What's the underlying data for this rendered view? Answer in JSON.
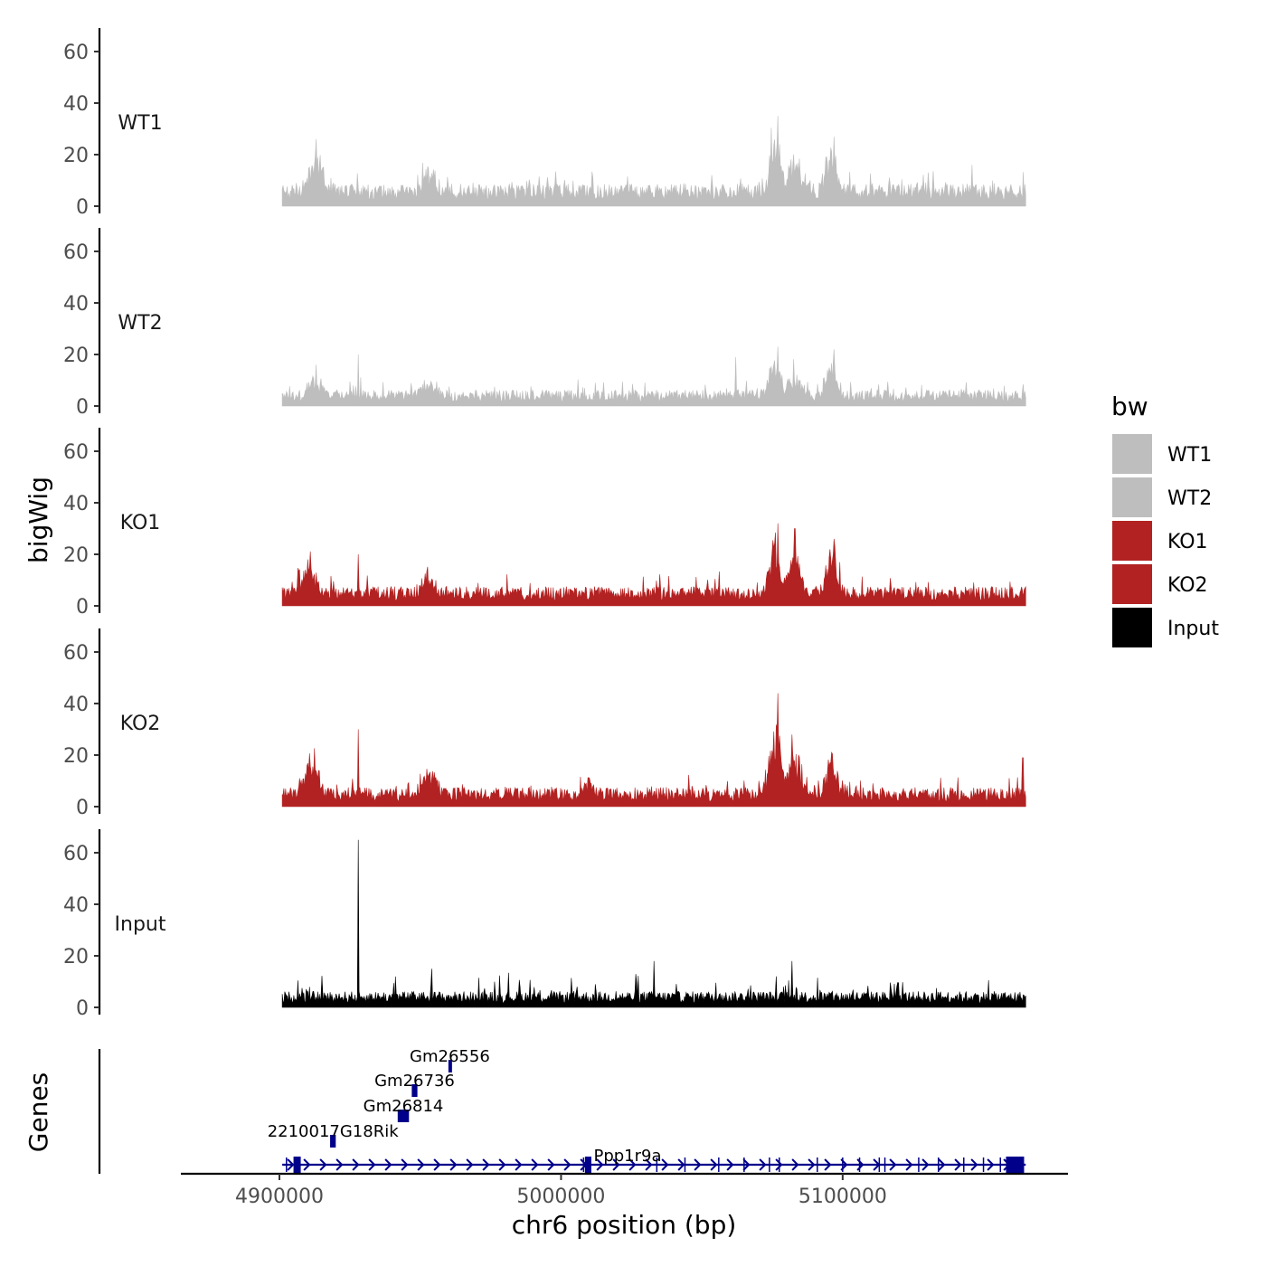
{
  "chart_data": {
    "type": "area",
    "title": "",
    "xlabel": "chr6 position (bp)",
    "ylabel": "bigWig",
    "genes_label": "Genes",
    "xlim": [
      4865000,
      5180000
    ],
    "ylim": [
      0,
      68
    ],
    "data_range": [
      4901000,
      5165000
    ],
    "x_ticks": [
      4900000,
      5000000,
      5100000
    ],
    "x_tick_labels": [
      "4900000",
      "5000000",
      "5100000"
    ],
    "y_ticks": [
      0,
      20,
      40,
      60
    ],
    "y_tick_labels": [
      "0",
      "20",
      "40",
      "60"
    ],
    "grid": false,
    "legend": {
      "title": "bw",
      "position": "right",
      "entries": [
        {
          "label": "WT1",
          "color": "#bebebe"
        },
        {
          "label": "WT2",
          "color": "#bebebe"
        },
        {
          "label": "KO1",
          "color": "#b22222"
        },
        {
          "label": "KO2",
          "color": "#b22222"
        },
        {
          "label": "Input",
          "color": "#000000"
        }
      ]
    },
    "series": [
      {
        "name": "WT1",
        "color": "#bebebe",
        "base": 7,
        "noise": 5,
        "peaks": [
          [
            4913000,
            12,
            3500
          ],
          [
            4953000,
            7,
            3000
          ],
          [
            5076000,
            20,
            2500
          ],
          [
            5083000,
            12,
            3000
          ],
          [
            5096000,
            14,
            2500
          ]
        ],
        "spikes": [
          [
            4913000,
            26
          ],
          [
            5077000,
            35
          ],
          [
            5097000,
            27
          ],
          [
            5146000,
            16
          ]
        ]
      },
      {
        "name": "WT2",
        "color": "#bebebe",
        "base": 5,
        "noise": 4,
        "peaks": [
          [
            4913000,
            6,
            3500
          ],
          [
            4953000,
            5,
            3000
          ],
          [
            5076000,
            14,
            2500
          ],
          [
            5083000,
            8,
            3000
          ],
          [
            5096000,
            12,
            2500
          ]
        ],
        "spikes": [
          [
            4928000,
            20
          ],
          [
            4913000,
            16
          ],
          [
            5062000,
            19
          ],
          [
            5077000,
            23
          ],
          [
            5097000,
            22
          ]
        ]
      },
      {
        "name": "KO1",
        "color": "#b22222",
        "base": 6,
        "noise": 5,
        "peaks": [
          [
            4911000,
            9,
            3500
          ],
          [
            4953000,
            6,
            3000
          ],
          [
            5076000,
            19,
            2500
          ],
          [
            5083000,
            13,
            3000
          ],
          [
            5096000,
            14,
            2500
          ]
        ],
        "spikes": [
          [
            4910000,
            18
          ],
          [
            4928000,
            20
          ],
          [
            5077000,
            32
          ],
          [
            5083000,
            30
          ],
          [
            5097000,
            26
          ]
        ]
      },
      {
        "name": "KO2",
        "color": "#b22222",
        "base": 6,
        "noise": 5,
        "peaks": [
          [
            4911000,
            11,
            3500
          ],
          [
            4953000,
            8,
            3000
          ],
          [
            5010000,
            6,
            1500
          ],
          [
            5076000,
            24,
            2500
          ],
          [
            5083000,
            14,
            3000
          ],
          [
            5096000,
            13,
            2500
          ]
        ],
        "spikes": [
          [
            4928000,
            30
          ],
          [
            5077000,
            44
          ],
          [
            5082000,
            28
          ],
          [
            5096000,
            21
          ],
          [
            5164000,
            19
          ]
        ]
      },
      {
        "name": "Input",
        "color": "#000000",
        "base": 5,
        "noise": 6,
        "peaks": [],
        "spikes": [
          [
            4928000,
            65
          ],
          [
            4954000,
            15
          ],
          [
            5082000,
            18
          ],
          [
            5033000,
            18
          ]
        ]
      }
    ],
    "genes": [
      {
        "name": "Gm26556",
        "start": 4960000,
        "end": 4961000,
        "row": 4
      },
      {
        "name": "Gm26736",
        "start": 4947000,
        "end": 4949000,
        "row": 3
      },
      {
        "name": "Gm26814",
        "start": 4942000,
        "end": 4946000,
        "row": 2
      },
      {
        "name": "2210017G18Rik",
        "start": 4918000,
        "end": 4920000,
        "row": 1
      },
      {
        "name": "Ppp1r9a",
        "start": 4901000,
        "end": 5165000,
        "row": 0,
        "exons": [
          4902500,
          4905500,
          4906500,
          5008000,
          5034000,
          5044000,
          5056000,
          5065000,
          5074000,
          5077500,
          5091000,
          5100000,
          5106000,
          5113000,
          5115000,
          5127000,
          5134000,
          5143000,
          5150000,
          5156000,
          5159000,
          5163000
        ]
      }
    ]
  }
}
